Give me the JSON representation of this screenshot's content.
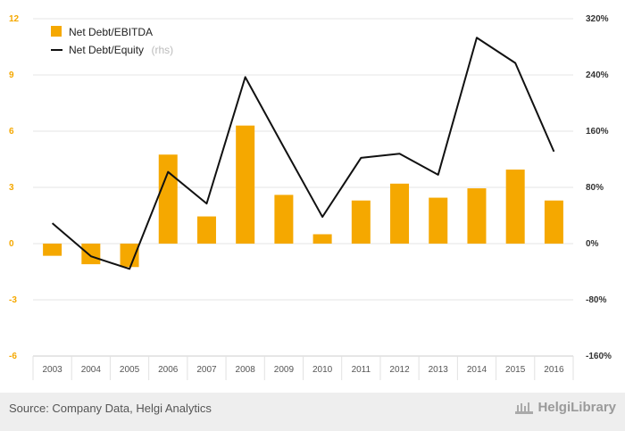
{
  "chart_data": {
    "type": "bar+line",
    "categories": [
      "2003",
      "2004",
      "2005",
      "2006",
      "2007",
      "2008",
      "2009",
      "2010",
      "2011",
      "2012",
      "2013",
      "2014",
      "2015",
      "2016"
    ],
    "series": [
      {
        "name": "Net Debt/EBITDA",
        "type": "bar",
        "axis": "left",
        "color": "#f5a800",
        "values": [
          -0.65,
          -1.1,
          -1.25,
          4.75,
          1.45,
          6.3,
          2.6,
          0.5,
          2.3,
          3.2,
          2.45,
          2.95,
          3.95,
          2.3
        ]
      },
      {
        "name": "Net Debt/Equity",
        "name_suffix": "(rhs)",
        "type": "line",
        "axis": "right",
        "color": "#111111",
        "values": [
          29,
          -18,
          -36,
          102,
          57,
          237,
          137,
          38,
          122,
          128,
          98,
          293,
          257,
          131
        ]
      }
    ],
    "left_axis": {
      "min": -6,
      "max": 12,
      "ticks": [
        "-6",
        "-3",
        "0",
        "3",
        "6",
        "9",
        "12"
      ],
      "color": "#f5a800"
    },
    "right_axis": {
      "min": -160,
      "max": 320,
      "ticks": [
        "-160%",
        "-80%",
        "0%",
        "80%",
        "160%",
        "240%",
        "320%"
      ]
    },
    "grid": true,
    "legend_position": "top-left"
  },
  "footer": {
    "source": "Source: Company Data, Helgi Analytics",
    "brand": "HelgiLibrary"
  }
}
